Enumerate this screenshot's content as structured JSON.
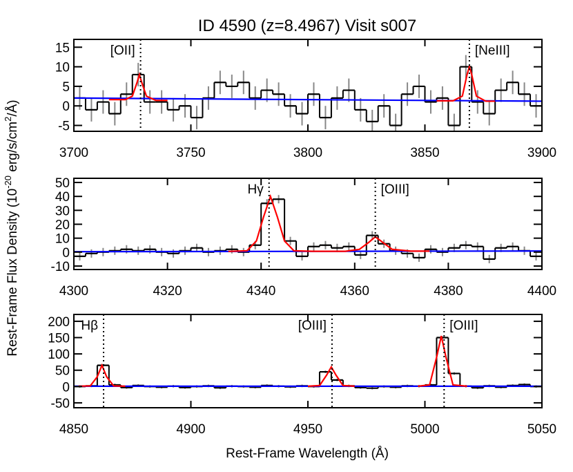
{
  "title": "ID 4590 (z=8.4967) Visit s007",
  "xlabel": "Rest-Frame Wavelength (Å)",
  "ylabel": [
    "Rest-Frame Flux Density (10",
    "-20",
    " erg/s/cm",
    "2",
    "/Å)"
  ],
  "chart_data": [
    {
      "type": "step",
      "xlim": [
        3700,
        3900
      ],
      "xticks": [
        3700,
        3750,
        3800,
        3850,
        3900
      ],
      "ylim": [
        -6.5,
        17
      ],
      "yticks": [
        -5,
        0,
        5,
        10,
        15
      ],
      "flux": {
        "color": "#000000",
        "error_color": "#888888",
        "x": [
          3702.5,
          3707.5,
          3712.5,
          3717.5,
          3722.5,
          3727.5,
          3732.5,
          3737.5,
          3742.5,
          3747.5,
          3752.5,
          3757.5,
          3762.5,
          3767.5,
          3772.5,
          3777.5,
          3782.5,
          3787.5,
          3792.5,
          3797.5,
          3802.5,
          3807.5,
          3812.5,
          3817.5,
          3822.5,
          3827.5,
          3832.5,
          3837.5,
          3842.5,
          3847.5,
          3852.5,
          3857.5,
          3862.5,
          3867.5,
          3872.5,
          3877.5,
          3882.5,
          3887.5,
          3892.5,
          3897.5
        ],
        "values": [
          2,
          -1,
          1,
          -2,
          3,
          8,
          1,
          1,
          -1,
          0,
          -3,
          2,
          6,
          5,
          6,
          2,
          4,
          3,
          0,
          -2,
          3,
          -3,
          2,
          4,
          -1,
          -4,
          0,
          -5,
          3,
          5,
          1,
          2,
          -5,
          10,
          1,
          -2,
          4,
          6,
          3,
          0
        ],
        "errors": [
          3,
          3,
          3,
          3,
          3,
          3,
          3,
          3,
          3,
          3,
          3,
          3,
          3,
          3,
          3,
          3,
          3,
          3,
          3,
          3,
          3,
          3,
          3,
          3,
          3,
          3,
          3,
          3,
          3,
          3,
          3,
          3,
          3,
          3,
          3,
          3,
          3,
          3,
          3,
          3
        ]
      },
      "model": {
        "color": "#ff0000",
        "x": [
          3715,
          3722,
          3725,
          3727,
          3728,
          3729,
          3731,
          3735,
          3740,
          null,
          3855,
          3862,
          3866,
          3868,
          3869,
          3870,
          3872,
          3876,
          3880
        ],
        "values": [
          1.6,
          1.6,
          2.5,
          6,
          8,
          6,
          2.5,
          1.4,
          1.4,
          null,
          1.3,
          1.3,
          2.5,
          8,
          10,
          8,
          2.5,
          1.2,
          1.2
        ]
      },
      "continuum": {
        "color": "#0000ff",
        "x": [
          3700,
          3900
        ],
        "values": [
          2,
          1.2
        ]
      },
      "lines": [
        {
          "x": 3728.5,
          "label": "[OII]",
          "side": "left"
        },
        {
          "x": 3869,
          "label": "[NeIII]",
          "side": "right"
        }
      ]
    },
    {
      "type": "step",
      "xlim": [
        4300,
        4400
      ],
      "xticks": [
        4300,
        4320,
        4340,
        4360,
        4380,
        4400
      ],
      "ylim": [
        -12.5,
        53
      ],
      "yticks": [
        -10,
        0,
        10,
        20,
        30,
        40,
        50
      ],
      "flux": {
        "color": "#000000",
        "error_color": "#888888",
        "x": [
          4301.25,
          4303.75,
          4306.25,
          4308.75,
          4311.25,
          4313.75,
          4316.25,
          4318.75,
          4321.25,
          4323.75,
          4326.25,
          4328.75,
          4331.25,
          4333.75,
          4336.25,
          4338.75,
          4341.25,
          4343.75,
          4346.25,
          4348.75,
          4351.25,
          4353.75,
          4356.25,
          4358.75,
          4361.25,
          4363.75,
          4366.25,
          4368.75,
          4371.25,
          4373.75,
          4376.25,
          4378.75,
          4381.25,
          4383.75,
          4386.25,
          4388.75,
          4391.25,
          4393.75,
          4396.25,
          4398.75
        ],
        "values": [
          -3,
          -1,
          0,
          1,
          2,
          1,
          2,
          0,
          -1,
          1,
          3,
          0,
          1,
          2,
          0,
          5,
          35,
          38,
          8,
          -3,
          4,
          5,
          3,
          4,
          -2,
          12,
          6,
          1,
          -1,
          -4,
          2,
          0,
          3,
          5,
          4,
          -5,
          3,
          4,
          1,
          -3
        ],
        "errors": [
          3,
          3,
          3,
          3,
          3,
          3,
          3,
          3,
          3,
          3,
          3,
          3,
          3,
          3,
          3,
          3,
          3,
          3,
          3,
          3,
          3,
          3,
          3,
          3,
          3,
          3,
          3,
          3,
          3,
          3,
          3,
          3,
          3,
          3,
          3,
          3,
          3,
          3,
          3,
          3
        ]
      },
      "model": {
        "color": "#ff0000",
        "x": [
          4333,
          4337,
          4339,
          4340.5,
          4342,
          4343.5,
          4345,
          4347,
          4351,
          4358,
          4361,
          4363,
          4364.4,
          4366,
          4368,
          4372,
          4376
        ],
        "values": [
          0.5,
          1,
          8,
          25,
          40,
          25,
          8,
          1,
          0.6,
          0.6,
          2,
          7,
          11,
          7,
          2,
          0.7,
          0.7
        ]
      },
      "continuum": {
        "color": "#0000ff",
        "x": [
          4300,
          4400
        ],
        "values": [
          0.3,
          0.8
        ]
      },
      "lines": [
        {
          "x": 4341.7,
          "label": "Hγ",
          "side": "left"
        },
        {
          "x": 4364.4,
          "label": "[OIII]",
          "side": "right"
        }
      ]
    },
    {
      "type": "step",
      "xlim": [
        4850,
        5050
      ],
      "xticks": [
        4850,
        4900,
        4950,
        5000,
        5050
      ],
      "ylim": [
        -65,
        221
      ],
      "yticks": [
        -50,
        0,
        50,
        100,
        150,
        200
      ],
      "flux": {
        "color": "#000000",
        "error_color": "#888888",
        "x": [
          4852.5,
          4857.5,
          4862.5,
          4867.5,
          4872.5,
          4877.5,
          4882.5,
          4887.5,
          4892.5,
          4897.5,
          4902.5,
          4907.5,
          4912.5,
          4917.5,
          4922.5,
          4927.5,
          4932.5,
          4937.5,
          4942.5,
          4947.5,
          4952.5,
          4957.5,
          4962.5,
          4967.5,
          4972.5,
          4977.5,
          4982.5,
          4987.5,
          4992.5,
          4997.5,
          5002.5,
          5007.5,
          5012.5,
          5017.5,
          5022.5,
          5027.5,
          5032.5,
          5037.5,
          5042.5,
          5047.5
        ],
        "values": [
          0,
          2,
          65,
          5,
          -3,
          3,
          0,
          -2,
          1,
          -3,
          0,
          2,
          -4,
          1,
          0,
          -2,
          3,
          1,
          -1,
          2,
          0,
          45,
          20,
          2,
          -3,
          -5,
          0,
          -2,
          2,
          1,
          5,
          150,
          40,
          1,
          -4,
          2,
          -2,
          3,
          6,
          0
        ],
        "errors": [
          4,
          4,
          4,
          4,
          4,
          4,
          4,
          4,
          4,
          4,
          4,
          4,
          4,
          4,
          4,
          4,
          4,
          4,
          4,
          4,
          4,
          4,
          4,
          4,
          4,
          4,
          4,
          4,
          4,
          4,
          4,
          4,
          4,
          4,
          4,
          4,
          4,
          4,
          4,
          4
        ]
      },
      "model": {
        "color": "#ff0000",
        "x": [
          4852,
          4857,
          4860,
          4862,
          4864,
          4867,
          4872,
          null,
          4950,
          4955,
          4958,
          4960,
          4962,
          4965,
          4970,
          null,
          4997,
          5002,
          5005,
          5007,
          5009,
          5012,
          5018
        ],
        "values": [
          1,
          2,
          30,
          65,
          30,
          2,
          1,
          null,
          1,
          3,
          35,
          60,
          35,
          3,
          1,
          null,
          1,
          5,
          90,
          155,
          90,
          5,
          1
        ]
      },
      "continuum": {
        "color": "#0000ff",
        "x": [
          4850,
          5050
        ],
        "values": [
          1,
          1
        ]
      },
      "lines": [
        {
          "x": 4862.7,
          "label": "Hβ",
          "side": "left"
        },
        {
          "x": 4960.3,
          "label": "[OIII]",
          "side": "left"
        },
        {
          "x": 5008.2,
          "label": "[OIII]",
          "side": "right"
        }
      ]
    }
  ]
}
